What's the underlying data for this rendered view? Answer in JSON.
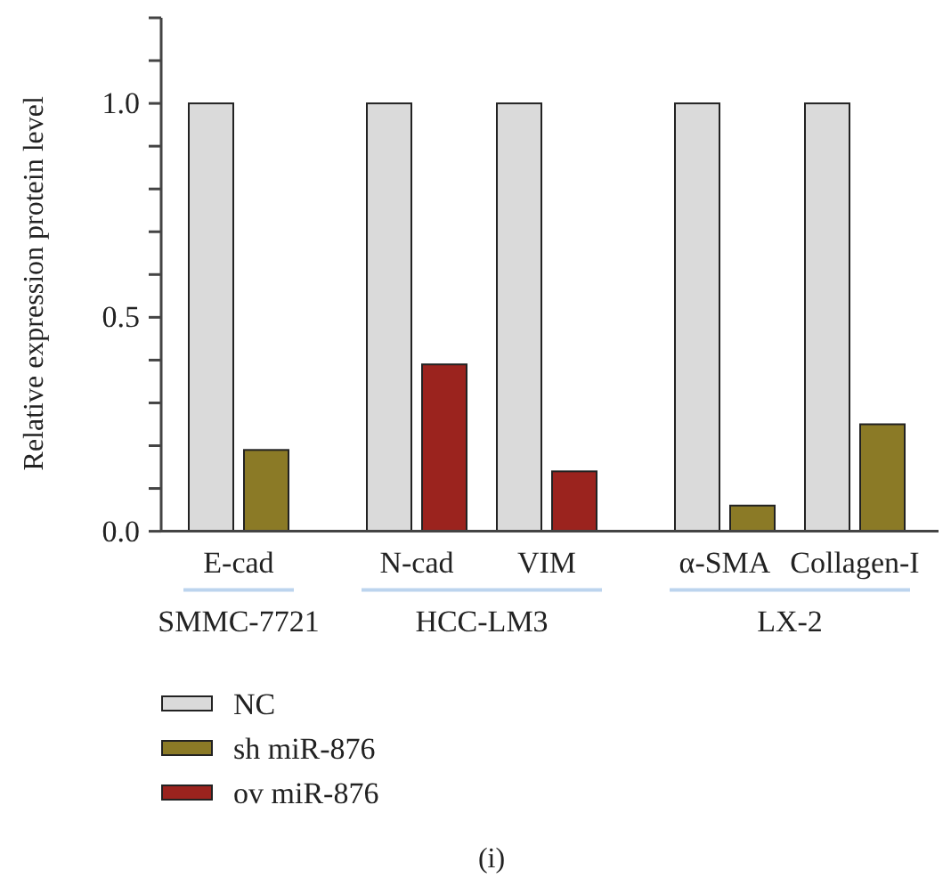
{
  "chart_data": {
    "type": "bar",
    "title": "(i)",
    "ylabel": "Relative expression protein level",
    "categories": [
      "E-cad",
      "N-cad",
      "VIM",
      "α-SMA",
      "Collagen-I"
    ],
    "series": [
      {
        "name": "NC",
        "color": "#dadada",
        "values": [
          1,
          1,
          1,
          1,
          1
        ]
      },
      {
        "name": "sh miR-876",
        "color": "#8b7a26",
        "values": [
          0.19,
          null,
          null,
          0.06,
          0.25
        ]
      },
      {
        "name": "ov miR-876",
        "color": "#9b231e",
        "values": [
          null,
          0.39,
          0.14,
          null,
          null
        ]
      }
    ],
    "annotations": [
      "SMMC-7721",
      "HCC-LM3",
      "LX-2"
    ],
    "ylim": [
      0,
      1.2
    ],
    "yticks": [
      {
        "value": 0,
        "label": "0.0"
      },
      {
        "value": 0.1,
        "label": null
      },
      {
        "value": 0.2,
        "label": null
      },
      {
        "value": 0.3,
        "label": null
      },
      {
        "value": 0.4,
        "label": null
      },
      {
        "value": 0.5,
        "label": "0.5"
      },
      {
        "value": 0.6,
        "label": null
      },
      {
        "value": 0.7,
        "label": null
      },
      {
        "value": 0.8,
        "label": null
      },
      {
        "value": 0.9,
        "label": null
      },
      {
        "value": 1,
        "label": "1.0"
      },
      {
        "value": 1.1,
        "label": null
      },
      {
        "value": 1.2,
        "label": null
      }
    ],
    "legend": "bottom"
  }
}
